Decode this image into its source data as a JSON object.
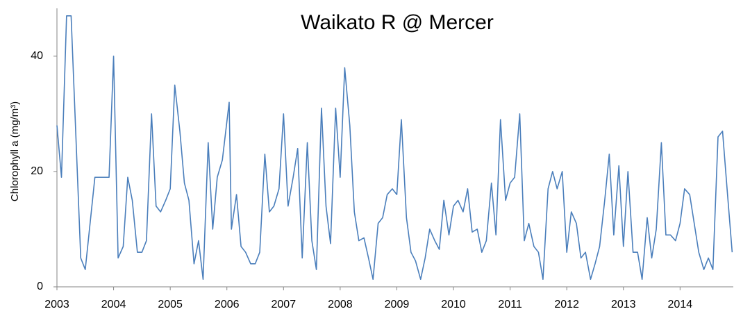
{
  "chart_data": {
    "type": "line",
    "title": "Waikato R @ Mercer",
    "y_label": "Chlorophyll a (mg/m³)",
    "x": [
      2003,
      2003.08,
      2003.17,
      2003.25,
      2003.42,
      2003.5,
      2003.67,
      2003.75,
      2003.92,
      2004,
      2004.08,
      2004.17,
      2004.25,
      2004.33,
      2004.42,
      2004.5,
      2004.58,
      2004.67,
      2004.75,
      2004.83,
      2004.92,
      2005,
      2005.08,
      2005.17,
      2005.25,
      2005.33,
      2005.42,
      2005.5,
      2005.58,
      2005.67,
      2005.75,
      2005.83,
      2005.92,
      2006.04,
      2006.08,
      2006.17,
      2006.25,
      2006.33,
      2006.42,
      2006.5,
      2006.58,
      2006.67,
      2006.75,
      2006.83,
      2006.92,
      2007,
      2007.08,
      2007.17,
      2007.25,
      2007.33,
      2007.42,
      2007.5,
      2007.58,
      2007.67,
      2007.75,
      2007.83,
      2007.92,
      2008,
      2008.08,
      2008.17,
      2008.25,
      2008.33,
      2008.42,
      2008.5,
      2008.58,
      2008.67,
      2008.75,
      2008.83,
      2008.92,
      2009,
      2009.08,
      2009.17,
      2009.25,
      2009.33,
      2009.42,
      2009.5,
      2009.58,
      2009.67,
      2009.75,
      2009.83,
      2009.92,
      2010,
      2010.08,
      2010.17,
      2010.25,
      2010.33,
      2010.42,
      2010.5,
      2010.58,
      2010.67,
      2010.75,
      2010.83,
      2010.92,
      2011,
      2011.08,
      2011.17,
      2011.25,
      2011.33,
      2011.42,
      2011.5,
      2011.58,
      2011.67,
      2011.75,
      2011.83,
      2011.92,
      2012,
      2012.08,
      2012.17,
      2012.25,
      2012.33,
      2012.42,
      2012.5,
      2012.58,
      2012.67,
      2012.75,
      2012.83,
      2012.92,
      2013,
      2013.08,
      2013.17,
      2013.25,
      2013.33,
      2013.42,
      2013.5,
      2013.58,
      2013.67,
      2013.75,
      2013.83,
      2013.92,
      2014,
      2014.08,
      2014.17,
      2014.25,
      2014.33,
      2014.42,
      2014.5,
      2014.58,
      2014.67,
      2014.75,
      2014.83,
      2014.92
    ],
    "values": [
      28,
      19,
      47,
      47,
      5,
      3,
      19,
      19,
      19,
      40,
      5,
      7,
      19,
      15,
      6,
      6,
      8,
      30,
      14,
      13,
      15,
      17,
      35,
      27,
      18,
      15,
      4,
      8,
      1.3,
      25,
      10,
      19,
      22,
      32,
      10,
      16,
      7,
      6,
      4,
      4,
      6,
      23,
      13,
      14,
      17,
      30,
      14,
      19,
      24,
      5,
      25,
      8,
      3,
      31,
      14,
      7.5,
      31,
      19,
      38,
      28,
      13,
      8,
      8.5,
      5,
      1.3,
      11,
      12,
      16,
      17,
      16,
      29,
      12,
      6,
      4.5,
      1.3,
      5,
      10,
      8,
      6.5,
      15,
      9,
      14,
      15,
      13,
      17,
      9.5,
      10,
      6,
      8,
      18,
      9,
      29,
      15,
      18,
      19,
      30,
      8,
      11,
      7,
      6,
      1.3,
      17,
      20,
      17,
      20,
      6,
      13,
      11,
      5,
      6,
      1.3,
      4,
      7,
      15,
      23,
      9,
      21,
      7,
      20,
      6,
      6,
      1.3,
      12,
      5,
      10,
      25,
      9,
      9,
      8,
      11,
      17,
      16,
      11,
      6,
      3,
      5,
      3,
      26,
      27,
      17,
      6
    ],
    "color": "#4a7ebb",
    "xlim": [
      2003,
      2014.94
    ],
    "xticks": [
      2003,
      2004,
      2005,
      2006,
      2007,
      2008,
      2009,
      2010,
      2011,
      2012,
      2013,
      2014
    ],
    "ylim": [
      0,
      48.3
    ],
    "yticks": [
      0,
      20,
      40
    ],
    "grid": false
  }
}
